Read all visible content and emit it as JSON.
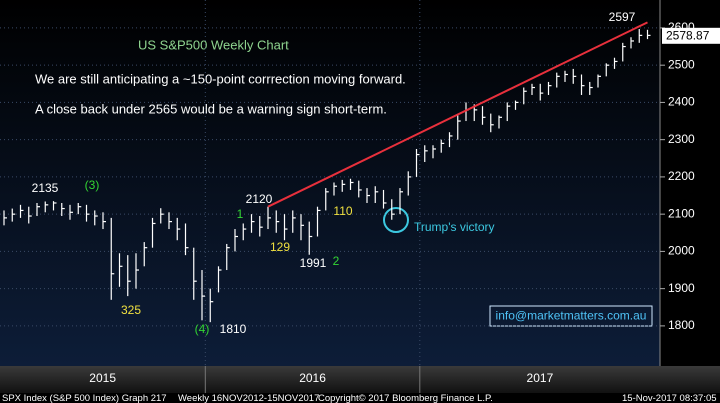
{
  "chart_data": {
    "type": "ohlc",
    "title": "US S&P500 Weekly Chart",
    "text_lines": [
      "We are still anticipating a ~150-point corrrection moving forward.",
      "A close back under 2565 would be a warning sign short-term."
    ],
    "color": "#ffffff",
    "high": [
      2110,
      2115,
      2125,
      2120,
      2130,
      2134,
      2135,
      2130,
      2125,
      2130,
      2125,
      2110,
      2105,
      2090,
      1995,
      1990,
      1995,
      2025,
      2090,
      2116,
      2105,
      2090,
      2075,
      2010,
      1950,
      1900,
      1960,
      2020,
      2060,
      2075,
      2100,
      2095,
      2120,
      2110,
      2100,
      2110,
      2100,
      2080,
      2120,
      2170,
      2185,
      2192,
      2195,
      2190,
      2170,
      2175,
      2165,
      2140,
      2170,
      2215,
      2275,
      2285,
      2285,
      2300,
      2320,
      2365,
      2400,
      2395,
      2390,
      2370,
      2365,
      2400,
      2405,
      2440,
      2450,
      2450,
      2455,
      2480,
      2485,
      2490,
      2475,
      2455,
      2475,
      2505,
      2520,
      2560,
      2575,
      2597,
      2595
    ],
    "low": [
      2070,
      2080,
      2090,
      2075,
      2095,
      2105,
      2110,
      2095,
      2085,
      2100,
      2080,
      2070,
      2060,
      1870,
      1905,
      1880,
      1900,
      1960,
      2010,
      2075,
      2060,
      2030,
      1990,
      1870,
      1815,
      1810,
      1890,
      1950,
      2000,
      2030,
      2050,
      2040,
      2060,
      2050,
      2030,
      2050,
      2030,
      1991,
      2040,
      2110,
      2150,
      2160,
      2165,
      2145,
      2130,
      2130,
      2115,
      2085,
      2100,
      2150,
      2200,
      2240,
      2250,
      2265,
      2280,
      2300,
      2350,
      2350,
      2340,
      2320,
      2330,
      2350,
      2380,
      2395,
      2420,
      2405,
      2420,
      2440,
      2455,
      2450,
      2420,
      2420,
      2440,
      2470,
      2490,
      2510,
      2545,
      2560,
      2570
    ],
    "close": [
      2090,
      2100,
      2110,
      2095,
      2120,
      2125,
      2130,
      2115,
      2105,
      2120,
      2100,
      2095,
      2080,
      1940,
      1960,
      1920,
      1950,
      2010,
      2075,
      2100,
      2080,
      2060,
      2010,
      1920,
      1880,
      1865,
      1950,
      2010,
      2040,
      2060,
      2080,
      2065,
      2090,
      2080,
      2060,
      2090,
      2070,
      2040,
      2110,
      2160,
      2175,
      2180,
      2185,
      2165,
      2150,
      2160,
      2130,
      2100,
      2160,
      2200,
      2260,
      2270,
      2275,
      2290,
      2310,
      2350,
      2380,
      2380,
      2360,
      2340,
      2360,
      2390,
      2400,
      2430,
      2440,
      2425,
      2445,
      2470,
      2475,
      2470,
      2445,
      2440,
      2470,
      2500,
      2510,
      2550,
      2565,
      2580,
      2580
    ],
    "ylim": [
      1695,
      2675
    ],
    "yticks": [
      1800,
      1900,
      2000,
      2100,
      2200,
      2300,
      2400,
      2500,
      2600
    ],
    "years": [
      "2015",
      "2016",
      "2017"
    ],
    "last_value": 2578.87,
    "trendline": {
      "x": [
        32,
        78
      ],
      "values": [
        2120,
        2615
      ],
      "color": "#e8303c"
    },
    "annotations": [
      {
        "text": "2135",
        "color": "#ffffff"
      },
      {
        "text": "(3)",
        "color": "#33d633"
      },
      {
        "text": "325",
        "color": "#f0e040"
      },
      {
        "text": "(4)",
        "color": "#33d633"
      },
      {
        "text": "1810",
        "color": "#ffffff"
      },
      {
        "text": "2120",
        "color": "#ffffff"
      },
      {
        "text": "1",
        "color": "#33d633"
      },
      {
        "text": "129",
        "color": "#f0e040"
      },
      {
        "text": "1991",
        "color": "#ffffff"
      },
      {
        "text": "2",
        "color": "#33d633"
      },
      {
        "text": "110",
        "color": "#f0e040"
      },
      {
        "text": "Trump's victory",
        "color": "#3cc8e0"
      },
      {
        "text": "2597",
        "color": "#ffffff"
      }
    ],
    "email": "info@marketmatters.com.au",
    "footer": [
      "SPX Index (S&P 500 Index) Graph 217",
      "Weekly 16NOV2012-15NOV2017",
      "Copyright© 2017 Bloomberg Finance L.P.",
      "15-Nov-2017 08:37:05"
    ]
  }
}
